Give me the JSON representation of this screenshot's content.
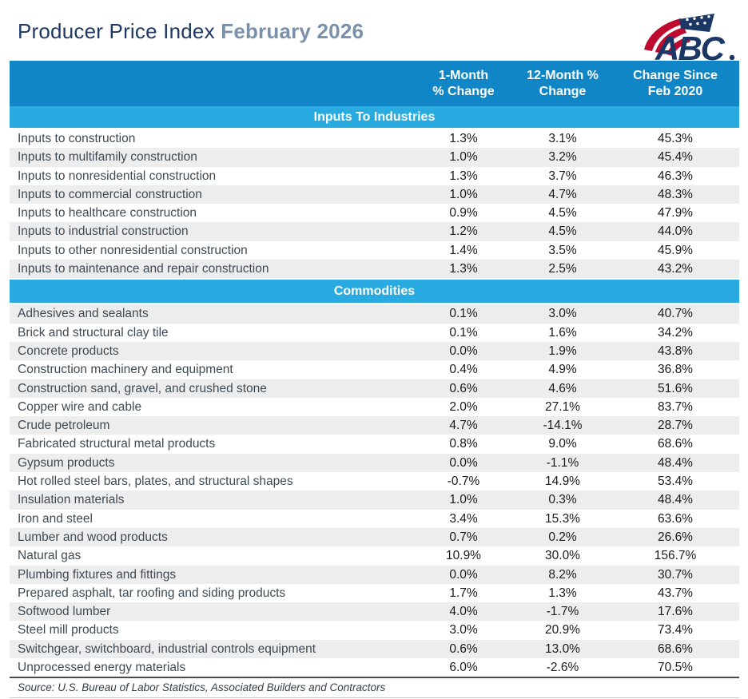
{
  "header": {
    "title": "Producer Price Index",
    "title_accent": "February 2026",
    "logo_text": "ABC"
  },
  "chart_data": {
    "type": "table",
    "title": "Producer Price Index",
    "subtitle": "February 2026",
    "columns": [
      "1-Month % Change",
      "12-Month % Change",
      "Change Since Feb 2020"
    ],
    "columns_display": [
      "1-Month\n% Change",
      "12-Month %\nChange",
      "Change Since\nFeb 2020"
    ],
    "sections": [
      {
        "label": "Inputs To Industries",
        "rows": [
          [
            "Inputs to construction",
            "1.3%",
            "3.1%",
            "45.3%"
          ],
          [
            "Inputs to multifamily construction",
            "1.0%",
            "3.2%",
            "45.4%"
          ],
          [
            "Inputs to nonresidential construction",
            "1.3%",
            "3.7%",
            "46.3%"
          ],
          [
            "Inputs to commercial construction",
            "1.0%",
            "4.7%",
            "48.3%"
          ],
          [
            "Inputs to healthcare construction",
            "0.9%",
            "4.5%",
            "47.9%"
          ],
          [
            "Inputs to industrial construction",
            "1.2%",
            "4.5%",
            "44.0%"
          ],
          [
            "Inputs to other nonresidential construction",
            "1.4%",
            "3.5%",
            "45.9%"
          ],
          [
            "Inputs to maintenance and repair construction",
            "1.3%",
            "2.5%",
            "43.2%"
          ]
        ]
      },
      {
        "label": "Commodities",
        "rows": [
          [
            "Adhesives and sealants",
            "0.1%",
            "3.0%",
            "40.7%"
          ],
          [
            "Brick and structural clay tile",
            "0.1%",
            "1.6%",
            "34.2%"
          ],
          [
            "Concrete products",
            "0.0%",
            "1.9%",
            "43.8%"
          ],
          [
            "Construction machinery and equipment",
            "0.4%",
            "4.9%",
            "36.8%"
          ],
          [
            "Construction sand, gravel, and crushed stone",
            "0.6%",
            "4.6%",
            "51.6%"
          ],
          [
            "Copper wire and cable",
            "2.0%",
            "27.1%",
            "83.7%"
          ],
          [
            "Crude petroleum",
            "4.7%",
            "-14.1%",
            "28.7%"
          ],
          [
            "Fabricated structural metal products",
            "0.8%",
            "9.0%",
            "68.6%"
          ],
          [
            "Gypsum products",
            "0.0%",
            "-1.1%",
            "48.4%"
          ],
          [
            "Hot rolled steel bars, plates, and structural shapes",
            "-0.7%",
            "14.9%",
            "53.4%"
          ],
          [
            "Insulation materials",
            "1.0%",
            "0.3%",
            "48.4%"
          ],
          [
            "Iron and steel",
            "3.4%",
            "15.3%",
            "63.6%"
          ],
          [
            "Lumber and wood products",
            "0.7%",
            "0.2%",
            "26.6%"
          ],
          [
            "Natural gas",
            "10.9%",
            "30.0%",
            "156.7%"
          ],
          [
            "Plumbing fixtures and fittings",
            "0.0%",
            "8.2%",
            "30.7%"
          ],
          [
            "Prepared asphalt, tar roofing and siding products",
            "1.7%",
            "1.3%",
            "43.7%"
          ],
          [
            "Softwood lumber",
            "4.0%",
            "-1.7%",
            "17.6%"
          ],
          [
            "Steel mill products",
            "3.0%",
            "20.9%",
            "73.4%"
          ],
          [
            "Switchgear, switchboard, industrial controls equipment",
            "0.6%",
            "13.0%",
            "68.6%"
          ],
          [
            "Unprocessed energy materials",
            "6.0%",
            "-2.6%",
            "70.5%"
          ]
        ]
      }
    ],
    "source": "Source: U.S. Bureau of Labor Statistics, Associated Builders and Contractors"
  },
  "colors": {
    "header_band": "#1086C7",
    "section_band": "#29ABE2",
    "stripe": "#EDEDED",
    "title_navy": "#1F3864",
    "title_accent": "#7B91A9",
    "flag_red": "#BF0A30",
    "logo_navy": "#1B3766"
  }
}
